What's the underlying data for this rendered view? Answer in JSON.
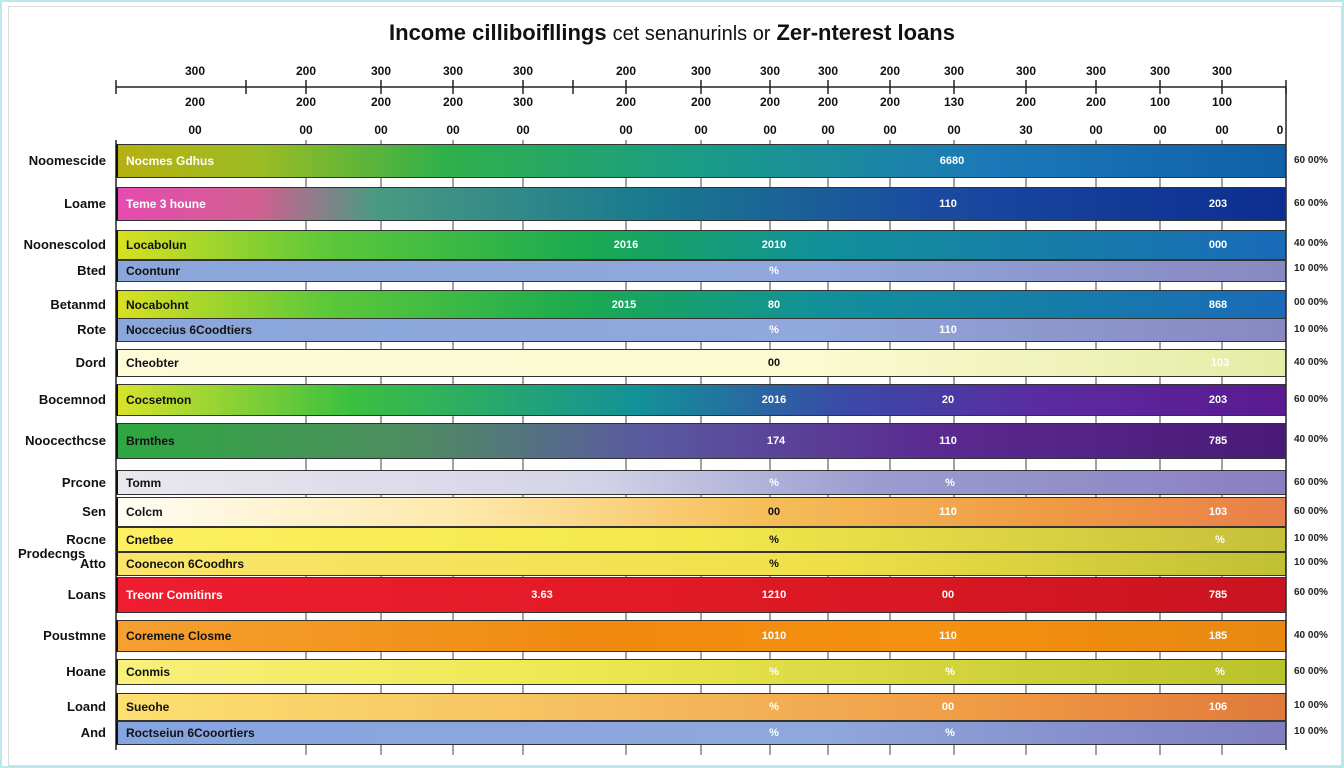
{
  "title": {
    "part_a": "Income cilliboifllings",
    "part_b": "cet senanurinls or",
    "part_c": "Zer-nterest loans"
  },
  "chart_data": {
    "type": "bar",
    "ticks_row1": [
      "300",
      "200",
      "300",
      "300",
      "300",
      "200",
      "300",
      "300",
      "300",
      "200",
      "300",
      "300",
      "300",
      "300",
      "300"
    ],
    "ticks_row2": [
      "200",
      "200",
      "200",
      "200",
      "300",
      "200",
      "200",
      "200",
      "200",
      "200",
      "130",
      "200",
      "200",
      "100",
      "100"
    ],
    "ticks_row3": [
      "00",
      "00",
      "00",
      "00",
      "00",
      "00",
      "00",
      "00",
      "00",
      "00",
      "00",
      "30",
      "00",
      "00",
      "00",
      "0"
    ],
    "rows": [
      {
        "label": "Noomescide",
        "name": "Nocmes Gdhus",
        "values": [
          "",
          "6680",
          ""
        ],
        "pct": "60 00%"
      },
      {
        "label": "Loame",
        "name": "Teme 3 houne",
        "values": [
          "",
          "110",
          "203"
        ],
        "pct": "60 00%"
      },
      {
        "label": "Noonescolod",
        "name": "Locabolun",
        "values": [
          "2016",
          "2010",
          "000"
        ],
        "pct": "40 00%"
      },
      {
        "label": "Bted",
        "name": "Coontunr",
        "values": [
          "",
          "%",
          ""
        ],
        "pct": "10 00%"
      },
      {
        "label": "Betanmd",
        "name": "Nocabohnt",
        "values": [
          "2015",
          "80",
          "868"
        ],
        "pct": "00 00%"
      },
      {
        "label": "Rote",
        "name": "Noccecius 6Coodtiers",
        "values": [
          "",
          "%",
          "110"
        ],
        "pct": "10 00%"
      },
      {
        "label": "Dord",
        "name": "Cheobter",
        "values": [
          "",
          "00",
          "103"
        ],
        "pct": "40 00%"
      },
      {
        "label": "Bocemnod",
        "name": "Cocsetmon",
        "values": [
          "",
          "2016",
          "20",
          "203"
        ],
        "pct": "60 00%"
      },
      {
        "label": "Noocecthcse",
        "name": "Brmthes",
        "values": [
          "",
          "174",
          "110",
          "785"
        ],
        "pct": "40 00%"
      },
      {
        "label": "Prcone",
        "name": "Tomm",
        "values": [
          "",
          "%",
          "%",
          ""
        ],
        "pct": "60 00%"
      },
      {
        "label": "Sen",
        "name": "Colcm",
        "values": [
          "",
          "00",
          "110",
          "103"
        ],
        "pct": "60 00%"
      },
      {
        "label": "Rocne",
        "name": "Cnetbee",
        "values": [
          "",
          "%",
          "",
          "%"
        ],
        "pct": "10 00%"
      },
      {
        "label": "Atto",
        "name": "Coonecon 6Coodhrs",
        "values": [
          "",
          "%",
          "",
          ""
        ],
        "pct": "10 00%"
      },
      {
        "label": "Loans",
        "name": "Treonr Comitinrs",
        "values": [
          "3.63",
          "1210",
          "00",
          "785"
        ],
        "pct": "60 00%"
      },
      {
        "label": "Poustmne",
        "name": "Coremene Closme",
        "values": [
          "",
          "1010",
          "110",
          "185"
        ],
        "pct": "40 00%"
      },
      {
        "label": "Hoane",
        "name": "Conmis",
        "values": [
          "",
          "%",
          "%",
          "%"
        ],
        "pct": "60 00%"
      },
      {
        "label": "Loand",
        "name": "Sueohe",
        "values": [
          "",
          "%",
          "00",
          "106"
        ],
        "pct": "10 00%"
      },
      {
        "label": "And",
        "name": "Roctseiun 6Cooortiers",
        "values": [
          "",
          "%",
          "%",
          ""
        ],
        "pct": "10 00%"
      }
    ],
    "side_label": "Prodecngs"
  }
}
